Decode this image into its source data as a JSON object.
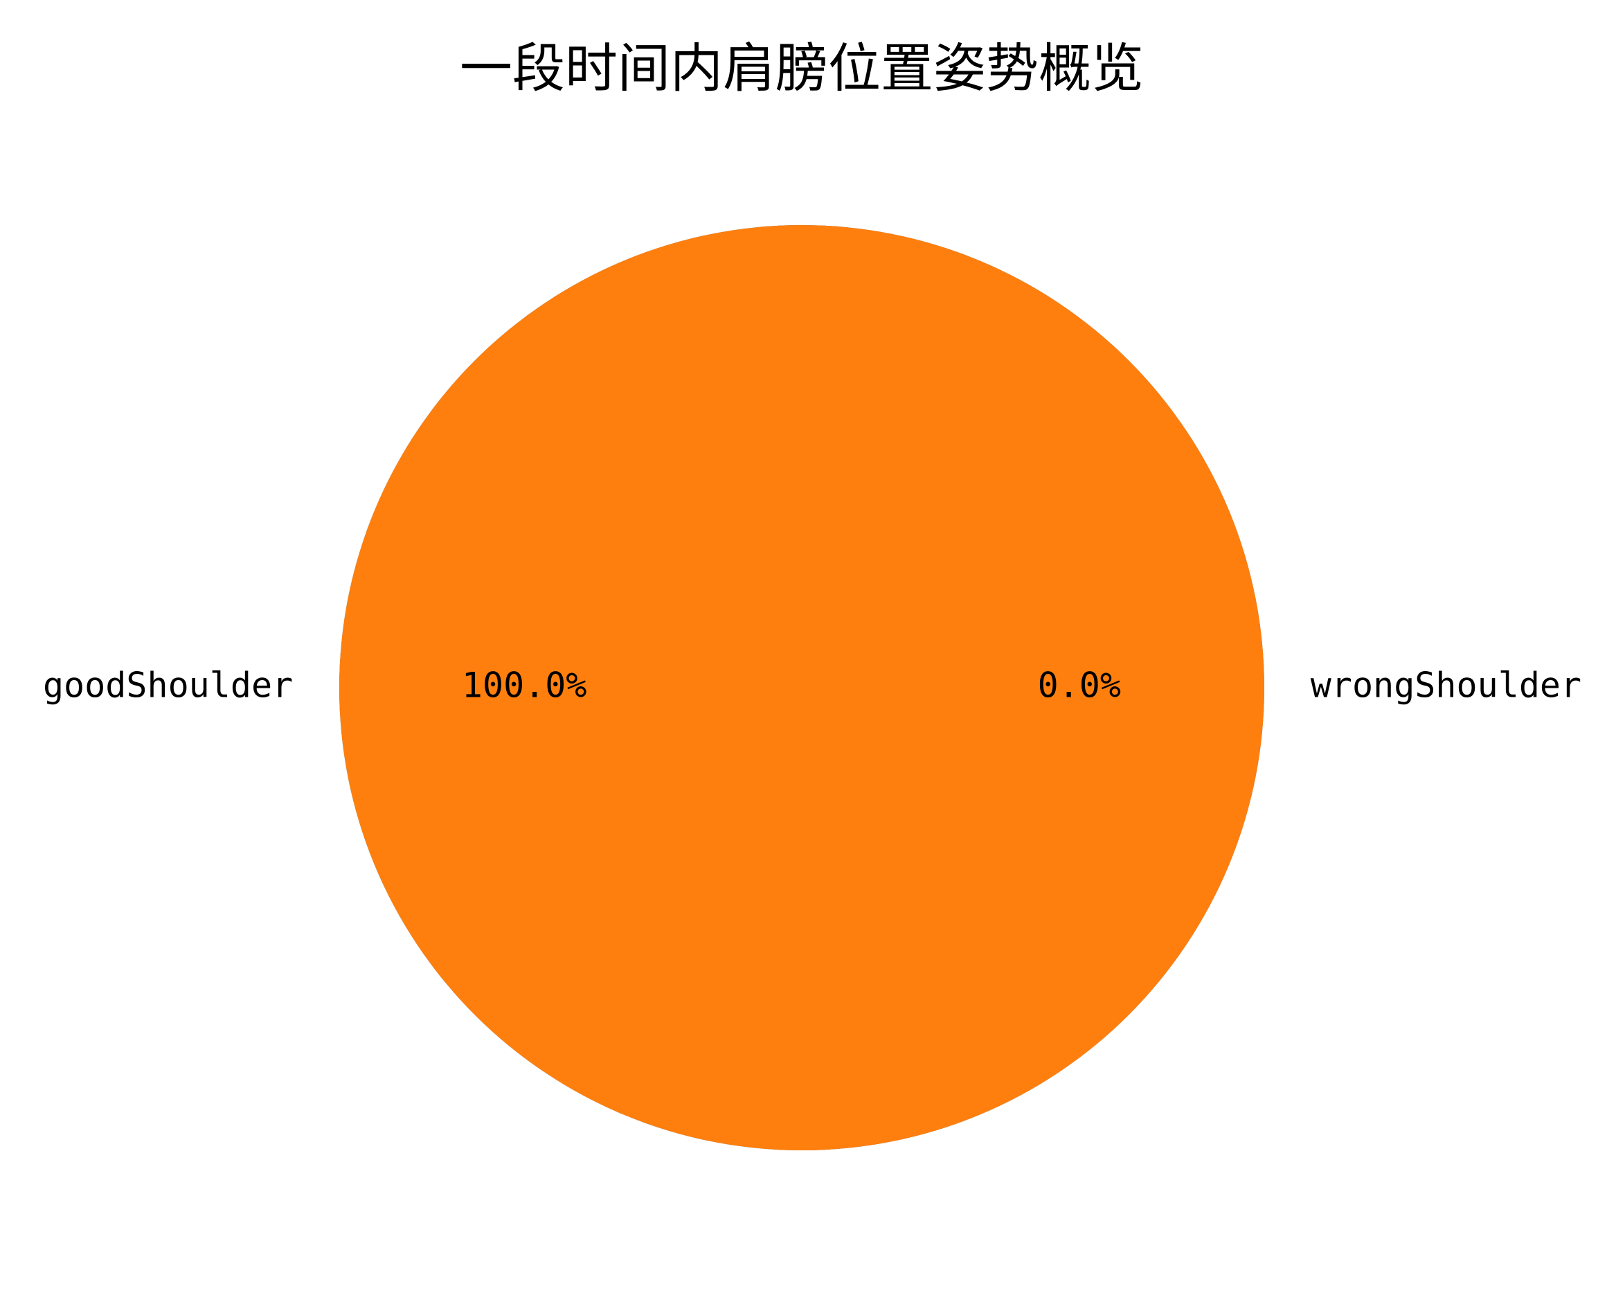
{
  "chart_data": {
    "type": "pie",
    "title": "一段时间内肩膀位置姿势概览",
    "slices": [
      {
        "label": "goodShoulder",
        "value": 100.0,
        "pct_label": "100.0%",
        "color": "#1f77b4"
      },
      {
        "label": "wrongShoulder",
        "value": 0.0,
        "pct_label": "0.0%",
        "color": "#ff7f0e"
      }
    ]
  }
}
